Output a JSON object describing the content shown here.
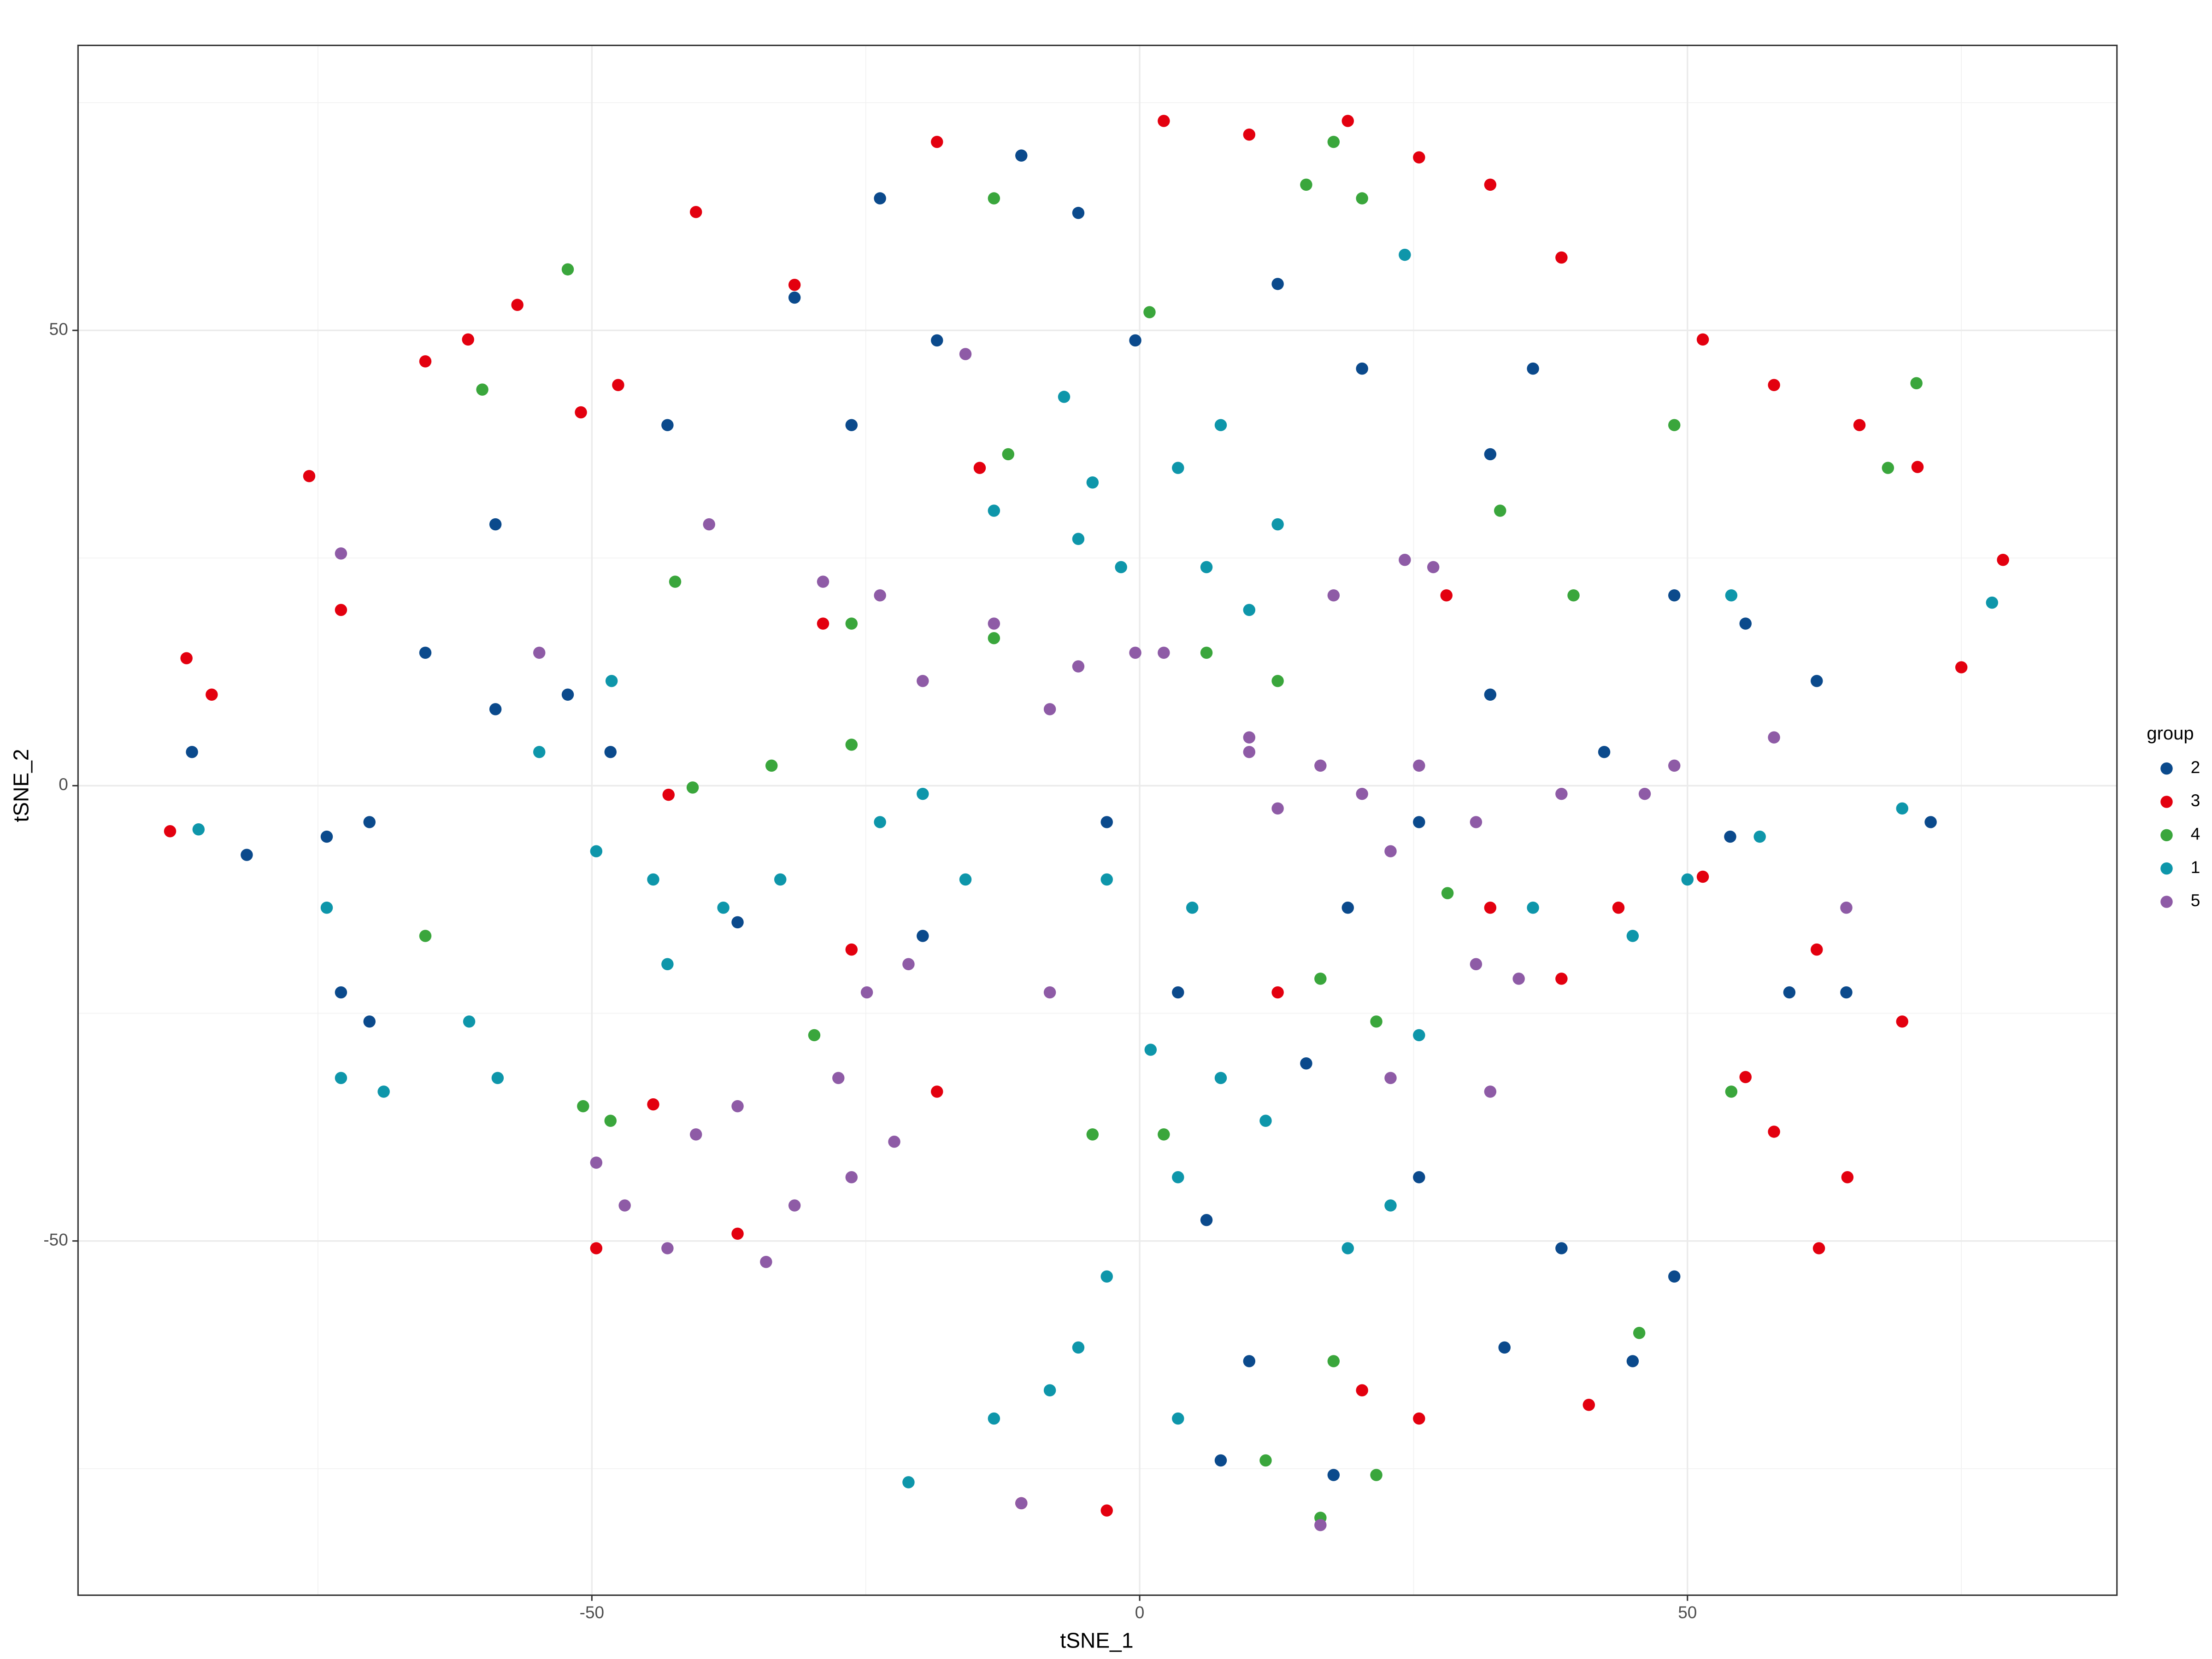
{
  "chart_data": {
    "type": "scatter",
    "x_label": "tSNE_1",
    "y_label": "tSNE_2",
    "legend_title": "group",
    "legend_position": "right",
    "grid": true,
    "xlim": [
      -96.9,
      89.2
    ],
    "ylim": [
      -88.9,
      81.3
    ],
    "xticks": [
      -50,
      0,
      50
    ],
    "yticks": [
      -50,
      0,
      50
    ],
    "x_minor_grid": [
      -75,
      -25,
      25,
      75
    ],
    "y_minor_grid": [
      -75,
      -25,
      25,
      75
    ],
    "series": [
      {
        "name": "2",
        "color": "#0b4a8c",
        "x": [
          -86.5,
          -81.5,
          -74.2,
          -70.3,
          -72.9,
          -65.2,
          -58.8,
          -52.2,
          -48.3,
          -58.8,
          -43.1,
          -31.5,
          -23.7,
          -10.8,
          -5.6,
          -0.4,
          12.6,
          20.3,
          35.9,
          32,
          48.8,
          55.3,
          61.8,
          72.2,
          42.4,
          32,
          -3,
          3.5,
          6.1,
          10,
          25.5,
          38.5,
          48.8,
          33.3,
          45,
          17.7,
          7.4,
          -19.8,
          -36.7,
          -70.3,
          -26.3,
          -18.5,
          25.5,
          19,
          59.3,
          64.5,
          53.9,
          15.2
        ],
        "values": [
          3.7,
          -7.6,
          -5.6,
          -4,
          -22.7,
          14.6,
          8.4,
          10,
          3.7,
          28.7,
          39.6,
          53.6,
          64.5,
          69.2,
          62.9,
          48.9,
          55.1,
          45.8,
          45.8,
          36.4,
          20.9,
          17.8,
          11.5,
          -4,
          3.7,
          10,
          -4,
          -22.7,
          -47.7,
          -63.2,
          -43,
          -50.8,
          -53.9,
          -61.7,
          -63.2,
          -75.7,
          -74.1,
          -16.5,
          -15,
          -25.9,
          39.6,
          48.9,
          -4,
          -13.4,
          -22.7,
          -22.7,
          -5.6,
          -30.5
        ]
      },
      {
        "name": "3",
        "color": "#e3000f",
        "x": [
          -87,
          -84.7,
          -88.5,
          -75.8,
          -65.2,
          -61.3,
          -56.8,
          -51,
          -47.6,
          -40.5,
          -31.5,
          -18.5,
          2.2,
          10,
          19,
          25.5,
          32,
          38.5,
          51.4,
          57.9,
          65.7,
          71,
          78.8,
          75,
          51.4,
          61.8,
          69.6,
          57.9,
          64.6,
          62,
          25.5,
          20.3,
          41,
          -18.5,
          -44.4,
          -49.6,
          -36.7,
          -26.3,
          -10.8,
          -3,
          32,
          38.5,
          12.6,
          -28.9,
          -14.6,
          -72.9,
          -43,
          28,
          43.7,
          55.3
        ],
        "values": [
          14,
          10,
          -5,
          34,
          46.6,
          49,
          52.8,
          41,
          44,
          63,
          55,
          70.7,
          73,
          71.5,
          73,
          69,
          66,
          58,
          49,
          44,
          39.6,
          35,
          24.8,
          13,
          -10,
          -18,
          -25.9,
          -38,
          -43,
          -50.8,
          -69.5,
          -66.4,
          -68,
          -33.6,
          -35,
          -50.8,
          -49.2,
          -18,
          -78.8,
          -79.6,
          -13.4,
          -21.2,
          -22.7,
          17.8,
          34.9,
          19.3,
          -1,
          20.9,
          -13.4,
          -32
        ]
      },
      {
        "name": "4",
        "color": "#3aa63c",
        "x": [
          -60,
          -52.2,
          -42.4,
          -26.3,
          -13.3,
          6.1,
          12.6,
          -40.8,
          -33.6,
          -26.3,
          -65.2,
          -50.8,
          -48.3,
          -29.7,
          -4.3,
          2.2,
          16.5,
          21.6,
          17.7,
          45.6,
          21.6,
          16.5,
          11.5,
          39.6,
          32.9,
          17.7,
          20.3,
          15.2,
          48.8,
          68.3,
          70.9,
          28.1,
          54,
          -13.3,
          0.9,
          -12
        ],
        "values": [
          43.5,
          56.7,
          22.4,
          17.8,
          16.2,
          14.6,
          11.5,
          -0.2,
          2.2,
          4.5,
          -16.5,
          -35.2,
          -36.8,
          -27.4,
          -38.3,
          -38.3,
          -21.2,
          -25.9,
          -63.2,
          -60.1,
          -75.7,
          -80.4,
          -74.1,
          20.9,
          30.2,
          70.7,
          64.5,
          66,
          39.6,
          34.9,
          44.2,
          -11.8,
          -33.6,
          64.5,
          52,
          36.4
        ]
      },
      {
        "name": "1",
        "color": "#0e96aa",
        "x": [
          -85.9,
          -74.2,
          -72.9,
          -69,
          -61.2,
          -58.6,
          -49.6,
          -44.4,
          -43.1,
          -38,
          -32.8,
          -23.7,
          -19.8,
          -15.9,
          -48.2,
          -54.8,
          -13.3,
          -5.6,
          -4.3,
          -1.7,
          6.1,
          3.5,
          7.4,
          12.6,
          10,
          -6.9,
          -3,
          4.8,
          1,
          7.4,
          3.5,
          -3,
          -5.6,
          -8.2,
          -13.3,
          -21.1,
          3.5,
          11.5,
          19,
          22.9,
          25.5,
          35.9,
          45,
          50,
          56.6,
          69.6,
          24.2,
          54,
          77.8
        ],
        "values": [
          -4.8,
          -13.4,
          -32.1,
          -33.6,
          -25.9,
          -32.1,
          -7.2,
          -10.3,
          -19.6,
          -13.4,
          -10.3,
          -4,
          -0.9,
          -10.3,
          11.5,
          3.7,
          30.2,
          27.1,
          33.3,
          24,
          24,
          34.9,
          39.6,
          28.7,
          19.3,
          42.7,
          -10.3,
          -13.4,
          -29,
          -32.1,
          -43,
          -53.9,
          -61.7,
          -66.4,
          -69.5,
          -76.5,
          -69.5,
          -36.8,
          -50.8,
          -46.1,
          -27.4,
          -13.4,
          -16.5,
          -10.3,
          -5.6,
          -2.5,
          58.3,
          20.9,
          20.1
        ]
      },
      {
        "name": "5",
        "color": "#8e5ba6",
        "x": [
          -72.9,
          -54.8,
          -39.3,
          -49.6,
          -47,
          -43.1,
          -40.5,
          -36.7,
          -34.1,
          -31.5,
          -26.3,
          -22.4,
          -27.5,
          -24.9,
          -21.1,
          -28.9,
          -23.7,
          -19.8,
          -13.3,
          -8.2,
          -5.6,
          -0.4,
          2.2,
          -8.2,
          10,
          12.6,
          16.5,
          20.3,
          25.5,
          22.9,
          30.7,
          38.5,
          46.1,
          48.8,
          30.7,
          34.6,
          24.2,
          26.8,
          17.7,
          22.9,
          32,
          -10.8,
          16.5,
          57.9,
          64.5,
          -15.9,
          10
        ],
        "values": [
          25.5,
          14.6,
          28.7,
          -41.4,
          -46.1,
          -50.8,
          -38.3,
          -35.2,
          -52.3,
          -46.1,
          -43,
          -39.1,
          -32.1,
          -22.7,
          -19.6,
          22.4,
          20.9,
          11.5,
          17.8,
          8.4,
          13.1,
          14.6,
          14.6,
          -22.7,
          3.7,
          -2.5,
          2.2,
          -0.9,
          2.2,
          -7.2,
          -4,
          -0.9,
          -0.9,
          2.2,
          -19.6,
          -21.2,
          24.8,
          24,
          20.9,
          -32.1,
          -33.6,
          -78.8,
          -81.2,
          5.3,
          -13.4,
          47.4,
          5.3
        ]
      }
    ]
  }
}
